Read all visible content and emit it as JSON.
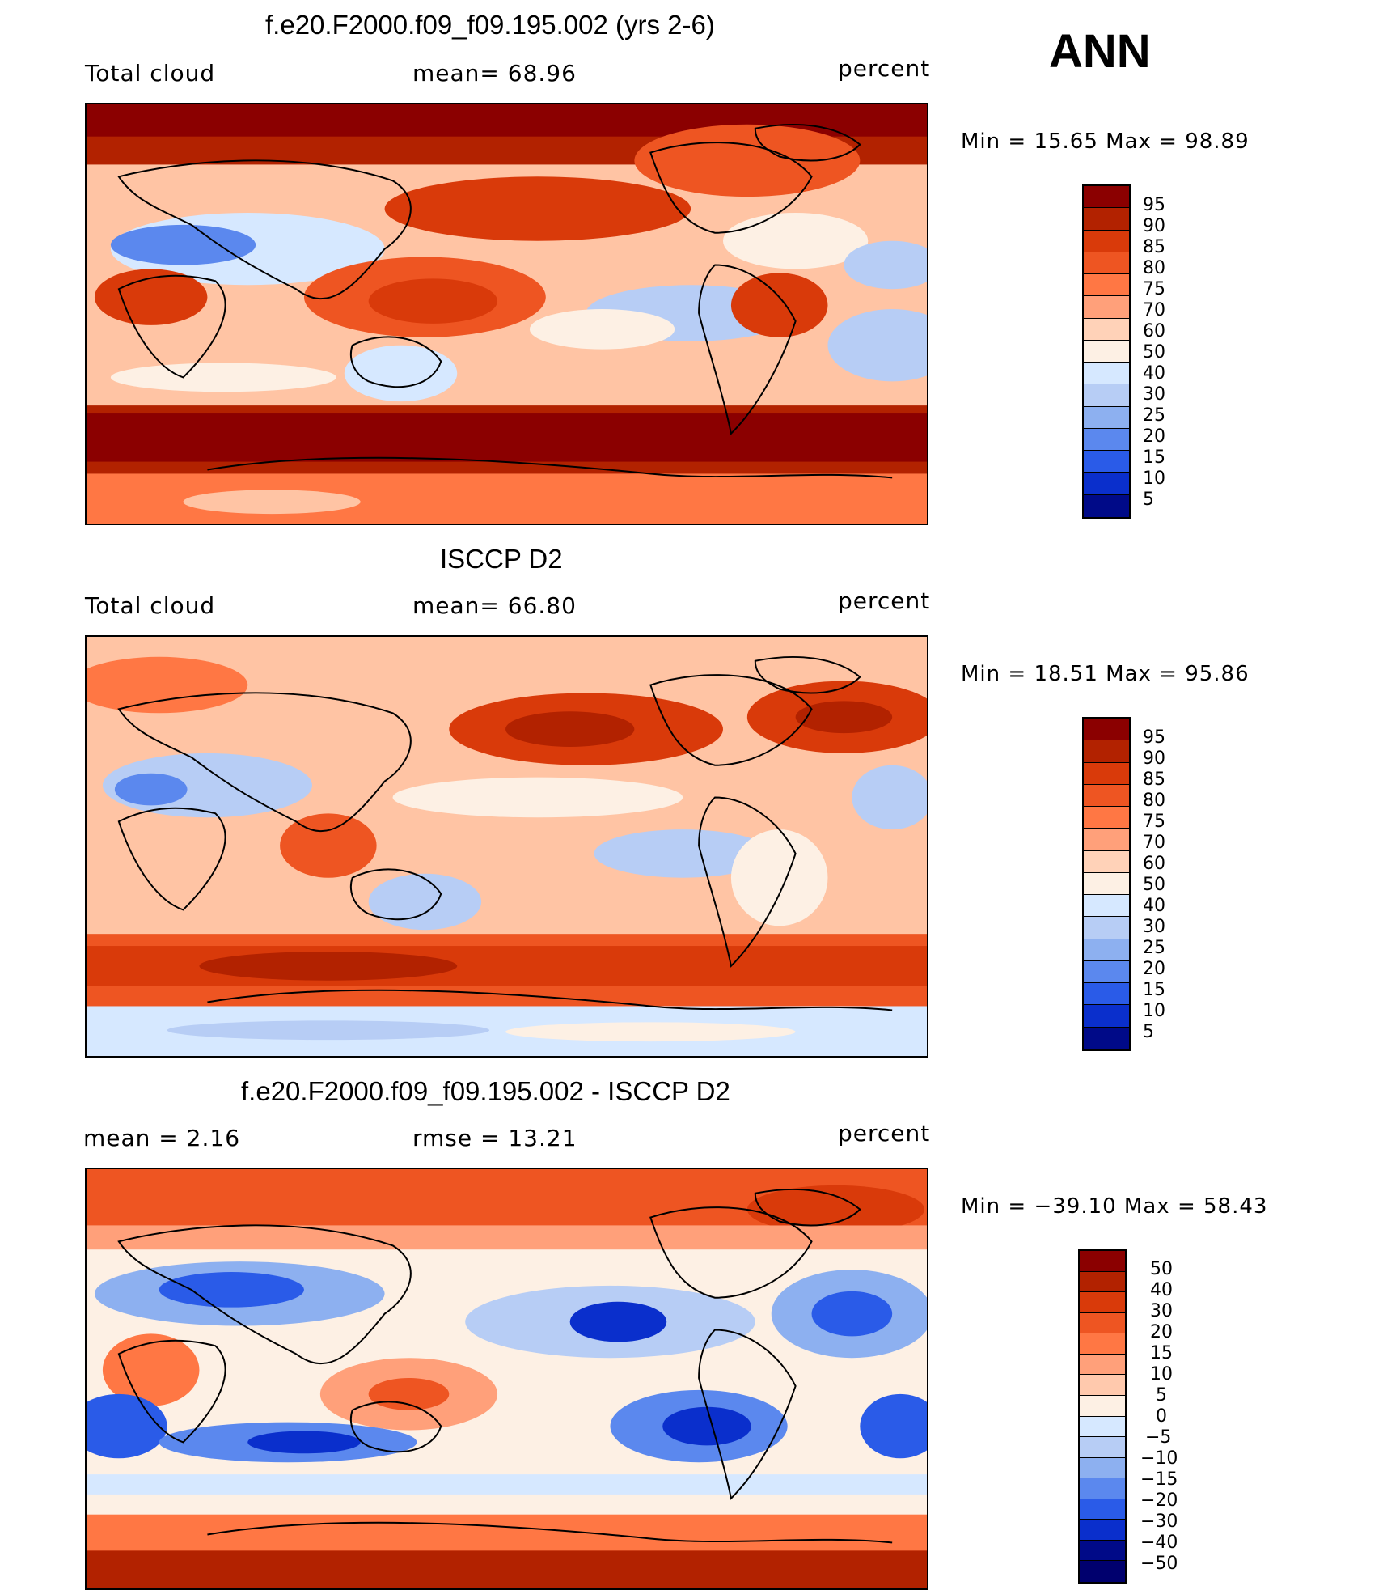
{
  "season": "ANN",
  "units": "percent",
  "panels": [
    {
      "title": "f.e20.F2000.f09_f09.195.002 (yrs 2-6)",
      "left_label": "Total cloud",
      "center_label": "mean=   68.96",
      "right_label": "percent",
      "minmax": "Min  =   15.65  Max  =    98.89",
      "colorbar_levels": [
        "95",
        "90",
        "85",
        "80",
        "75",
        "70",
        "60",
        "50",
        "40",
        "30",
        "25",
        "20",
        "15",
        "10",
        "5"
      ]
    },
    {
      "title": "ISCCP D2",
      "left_label": "Total cloud",
      "center_label": "mean=   66.80",
      "right_label": "percent",
      "minmax": "Min  =   18.51  Max  =    95.86",
      "colorbar_levels": [
        "95",
        "90",
        "85",
        "80",
        "75",
        "70",
        "60",
        "50",
        "40",
        "30",
        "25",
        "20",
        "15",
        "10",
        "5"
      ]
    },
    {
      "title": "f.e20.F2000.f09_f09.195.002 - ISCCP D2",
      "left_label": "mean  =      2.16",
      "center_label": "rmse  =     13.21",
      "right_label": "percent",
      "minmax": "Min  = −39.10  Max  =    58.43",
      "colorbar_levels": [
        "50",
        "40",
        "30",
        "20",
        "15",
        "10",
        "5",
        "0",
        "−5",
        "−10",
        "−15",
        "−20",
        "−30",
        "−40",
        "−50"
      ]
    }
  ],
  "colors": {
    "abs_scale": [
      "#8b0000",
      "#b22200",
      "#d93a0a",
      "#ee5522",
      "#ff7744",
      "#ffa07a",
      "#ffd2b8",
      "#fdf0e4",
      "#d6e8ff",
      "#b7cdf5",
      "#8db0f0",
      "#5b88ee",
      "#2a5be8",
      "#0a2fcc",
      "#000a88",
      "#00006e"
    ],
    "diff_scale": [
      "#8b0000",
      "#b22200",
      "#d93a0a",
      "#ee5522",
      "#ff7744",
      "#ffa07a",
      "#ffc9ad",
      "#fdf0e4",
      "#d6e8ff",
      "#b7cdf5",
      "#8db0f0",
      "#5b88ee",
      "#2a5be8",
      "#0a2fcc",
      "#000a88",
      "#00006e"
    ]
  }
}
